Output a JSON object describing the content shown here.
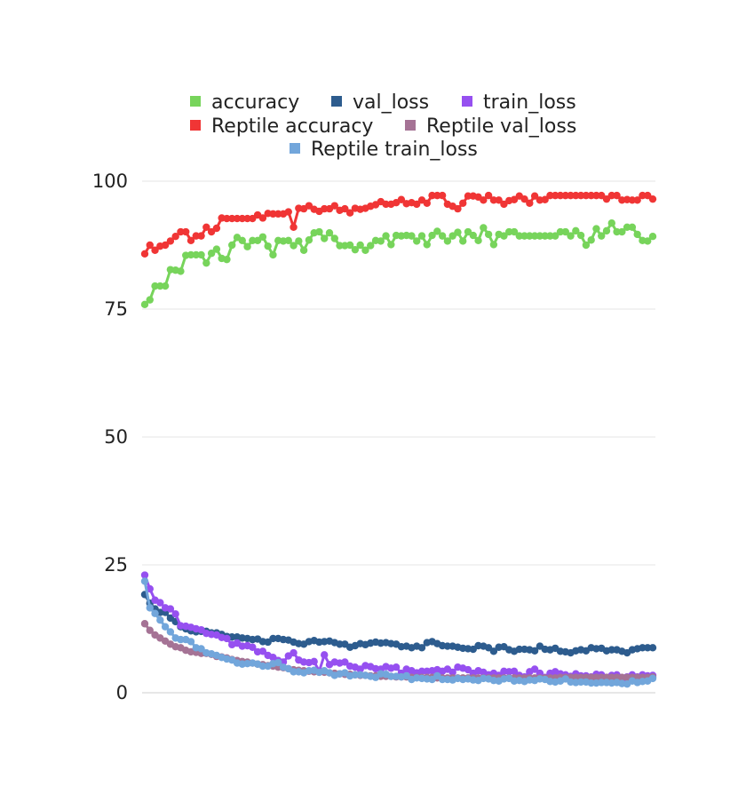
{
  "chart_data": {
    "type": "line",
    "title": "",
    "xlabel": "",
    "ylabel": "",
    "ylim": [
      0,
      100
    ],
    "yticks": [
      "100",
      "75",
      "50",
      "25",
      "0"
    ],
    "grid": true,
    "legend_position": "top",
    "n_points": 100,
    "series": [
      {
        "name": "accuracy",
        "color": "#77d45b",
        "values": [
          75.9,
          76.8,
          79.5,
          79.5,
          79.5,
          82.7,
          82.6,
          82.4,
          85.5,
          85.6,
          85.6,
          85.6,
          84.0,
          85.9,
          86.7,
          84.9,
          84.7,
          87.5,
          89.0,
          88.4,
          87.2,
          88.4,
          88.4,
          89.1,
          87.3,
          85.6,
          88.4,
          88.3,
          88.4,
          87.4,
          88.3,
          86.5,
          88.5,
          89.9,
          90.1,
          88.8,
          89.9,
          88.8,
          87.4,
          87.4,
          87.5,
          86.6,
          87.5,
          86.5,
          87.4,
          88.4,
          88.3,
          89.3,
          87.6,
          89.4,
          89.3,
          89.4,
          89.3,
          88.3,
          89.3,
          87.6,
          89.4,
          90.2,
          89.3,
          88.3,
          89.3,
          90.0,
          88.3,
          90.1,
          89.4,
          88.4,
          90.9,
          89.6,
          87.6,
          89.6,
          89.3,
          90.1,
          90.1,
          89.3,
          89.3,
          89.3,
          89.3,
          89.3,
          89.3,
          89.3,
          89.3,
          90.1,
          90.1,
          89.3,
          90.3,
          89.4,
          87.5,
          88.5,
          90.7,
          89.3,
          90.3,
          91.8,
          90.1,
          90.1,
          91.0,
          91.0,
          89.6,
          88.4,
          88.3,
          89.2
        ]
      },
      {
        "name": "val_loss",
        "color": "#2d5c8e",
        "values": [
          19.2,
          17.5,
          16.4,
          15.7,
          15.7,
          14.6,
          13.9,
          12.9,
          12.5,
          12.1,
          11.9,
          12.0,
          12.0,
          11.7,
          11.7,
          11.4,
          11.0,
          10.9,
          10.9,
          10.7,
          10.6,
          10.4,
          10.5,
          10.0,
          9.9,
          10.6,
          10.6,
          10.4,
          10.3,
          9.9,
          9.6,
          9.5,
          10.0,
          10.2,
          9.9,
          10.0,
          10.1,
          9.8,
          9.5,
          9.5,
          8.9,
          9.2,
          9.6,
          9.4,
          9.7,
          9.9,
          9.7,
          9.8,
          9.6,
          9.5,
          9.0,
          9.1,
          8.8,
          9.1,
          8.8,
          9.8,
          10.0,
          9.6,
          9.2,
          9.1,
          9.1,
          8.9,
          8.7,
          8.6,
          8.5,
          9.2,
          9.1,
          8.8,
          8.1,
          8.9,
          9.0,
          8.4,
          8.1,
          8.5,
          8.5,
          8.4,
          8.2,
          9.1,
          8.5,
          8.4,
          8.7,
          8.1,
          8.0,
          7.8,
          8.2,
          8.4,
          8.2,
          8.8,
          8.6,
          8.7,
          8.2,
          8.4,
          8.4,
          8.1,
          7.8,
          8.4,
          8.6,
          8.8,
          8.8,
          8.8
        ]
      },
      {
        "name": "train_loss",
        "color": "#9650f0",
        "values": [
          23.0,
          20.3,
          18.1,
          17.6,
          16.6,
          16.4,
          15.4,
          13.1,
          13.0,
          12.8,
          12.5,
          12.3,
          11.6,
          11.4,
          11.3,
          10.8,
          10.6,
          9.4,
          9.7,
          9.1,
          9.2,
          8.9,
          8.0,
          8.1,
          7.3,
          6.9,
          6.3,
          6.0,
          7.2,
          7.8,
          6.4,
          6.0,
          5.9,
          6.1,
          4.2,
          7.4,
          5.5,
          6.0,
          5.8,
          6.0,
          5.2,
          5.0,
          4.6,
          5.3,
          5.1,
          4.7,
          4.6,
          5.1,
          4.8,
          5.0,
          3.8,
          4.6,
          4.3,
          3.9,
          4.2,
          4.2,
          4.3,
          4.5,
          4.2,
          4.6,
          4.0,
          5.0,
          4.8,
          4.5,
          3.8,
          4.3,
          4.0,
          3.5,
          3.8,
          3.4,
          4.2,
          4.1,
          4.2,
          3.4,
          3.1,
          4.1,
          4.6,
          3.8,
          3.0,
          3.8,
          4.1,
          3.7,
          3.5,
          3.2,
          3.7,
          3.3,
          3.3,
          3.1,
          3.6,
          3.5,
          3.0,
          3.4,
          3.5,
          2.4,
          3.1,
          3.5,
          3.1,
          3.5,
          3.3,
          3.4
        ]
      },
      {
        "name": "Reptile accuracy",
        "color": "#f03535",
        "values": [
          85.8,
          87.5,
          86.5,
          87.3,
          87.5,
          88.3,
          89.2,
          90.1,
          90.1,
          88.4,
          89.3,
          89.3,
          91.0,
          90.1,
          90.8,
          92.8,
          92.7,
          92.7,
          92.7,
          92.7,
          92.7,
          92.7,
          93.4,
          92.8,
          93.7,
          93.6,
          93.6,
          93.6,
          94.0,
          91.0,
          94.7,
          94.6,
          95.2,
          94.5,
          94.1,
          94.6,
          94.6,
          95.2,
          94.3,
          94.6,
          93.8,
          94.7,
          94.5,
          94.7,
          95.1,
          95.4,
          96.0,
          95.5,
          95.5,
          95.8,
          96.4,
          95.6,
          95.8,
          95.5,
          96.3,
          95.7,
          97.2,
          97.2,
          97.2,
          95.5,
          95.1,
          94.6,
          95.7,
          97.1,
          97.1,
          96.9,
          96.3,
          97.2,
          96.3,
          96.3,
          95.5,
          96.2,
          96.4,
          97.1,
          96.5,
          95.7,
          97.1,
          96.3,
          96.4,
          97.2,
          97.2,
          97.2,
          97.2,
          97.2,
          97.2,
          97.2,
          97.2,
          97.2,
          97.2,
          97.2,
          96.5,
          97.2,
          97.2,
          96.3,
          96.4,
          96.3,
          96.3,
          97.2,
          97.2,
          96.5
        ]
      },
      {
        "name": "Reptile val_loss",
        "color": "#a57395",
        "values": [
          13.5,
          12.2,
          11.3,
          10.7,
          10.1,
          9.5,
          9.0,
          8.8,
          8.3,
          8.0,
          7.9,
          7.7,
          7.7,
          7.5,
          7.1,
          7.0,
          6.8,
          6.5,
          6.3,
          6.1,
          6.0,
          5.8,
          5.6,
          5.5,
          5.3,
          5.2,
          5.0,
          4.9,
          4.7,
          4.5,
          4.4,
          4.3,
          4.2,
          4.1,
          4.0,
          4.0,
          3.9,
          3.8,
          3.7,
          3.6,
          3.6,
          3.5,
          3.4,
          3.4,
          3.3,
          3.3,
          3.2,
          3.2,
          3.2,
          3.1,
          3.1,
          3.1,
          3.0,
          3.0,
          3.0,
          3.0,
          3.0,
          2.9,
          2.9,
          2.9,
          2.9,
          2.9,
          2.9,
          2.9,
          2.9,
          2.9,
          2.9,
          2.9,
          2.9,
          2.9,
          2.9,
          2.9,
          2.9,
          2.9,
          2.9,
          2.9,
          2.9,
          2.9,
          2.9,
          2.9,
          2.9,
          3.0,
          3.0,
          3.0,
          3.0,
          3.0,
          3.0,
          3.0,
          3.0,
          3.0,
          3.0,
          3.0,
          3.0,
          3.0,
          3.0,
          3.0,
          3.0,
          3.0,
          3.0,
          3.1
        ]
      },
      {
        "name": "Reptile train_loss",
        "color": "#72a6db",
        "values": [
          21.8,
          16.6,
          15.5,
          14.2,
          12.9,
          11.9,
          10.7,
          10.4,
          10.4,
          10.0,
          8.8,
          8.6,
          7.8,
          7.6,
          7.3,
          6.9,
          6.6,
          6.4,
          5.8,
          5.6,
          5.7,
          5.8,
          5.6,
          5.2,
          5.2,
          5.7,
          5.9,
          5.0,
          4.7,
          4.1,
          4.1,
          3.9,
          4.3,
          4.4,
          4.0,
          4.3,
          3.9,
          3.4,
          3.7,
          3.9,
          3.3,
          3.5,
          3.5,
          3.4,
          3.2,
          3.0,
          3.7,
          3.6,
          3.2,
          3.2,
          3.1,
          3.3,
          2.6,
          2.9,
          2.8,
          2.7,
          2.6,
          3.3,
          2.6,
          2.6,
          2.5,
          2.8,
          2.6,
          2.7,
          2.5,
          2.4,
          2.8,
          2.7,
          2.4,
          2.3,
          2.7,
          2.8,
          2.3,
          2.4,
          2.2,
          2.5,
          2.4,
          2.7,
          2.6,
          2.2,
          2.1,
          2.3,
          2.7,
          2.1,
          2.0,
          2.1,
          2.1,
          1.9,
          1.9,
          2.0,
          2.0,
          1.9,
          2.0,
          1.8,
          1.7,
          2.3,
          2.0,
          2.2,
          2.3,
          2.8
        ]
      }
    ]
  }
}
